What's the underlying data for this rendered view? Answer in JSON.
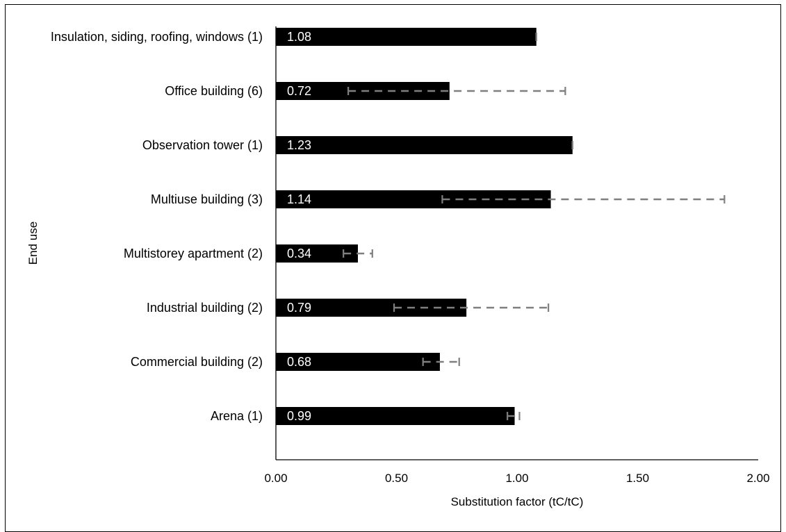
{
  "chart_data": {
    "type": "bar",
    "orientation": "horizontal",
    "title": "",
    "xlabel": "Substitution factor (tC/tC)",
    "ylabel": "End use",
    "xlim": [
      0,
      2
    ],
    "xticks": [
      "0.00",
      "0.50",
      "1.00",
      "1.50",
      "2.00"
    ],
    "grid": false,
    "categories": [
      "Insulation, siding, roofing, windows (1)",
      "Office building (6)",
      "Observation tower (1)",
      "Multiuse building (3)",
      "Multistorey apartment (2)",
      "Industrial building (2)",
      "Commercial building (2)",
      "Arena (1)"
    ],
    "values": [
      1.08,
      0.72,
      1.23,
      1.14,
      0.34,
      0.79,
      0.68,
      0.99
    ],
    "value_labels": [
      "1.08",
      "0.72",
      "1.23",
      "1.14",
      "0.34",
      "0.79",
      "0.68",
      "0.99"
    ],
    "error_ranges": [
      [
        1.08,
        1.08
      ],
      [
        0.3,
        1.2
      ],
      [
        1.23,
        1.23
      ],
      [
        0.69,
        1.86
      ],
      [
        0.28,
        0.4
      ],
      [
        0.49,
        1.13
      ],
      [
        0.61,
        0.76
      ],
      [
        0.96,
        1.01
      ]
    ],
    "colors": {
      "bar": "#000000",
      "error": "#7f7f7f",
      "value_label": "#ffffff"
    }
  }
}
